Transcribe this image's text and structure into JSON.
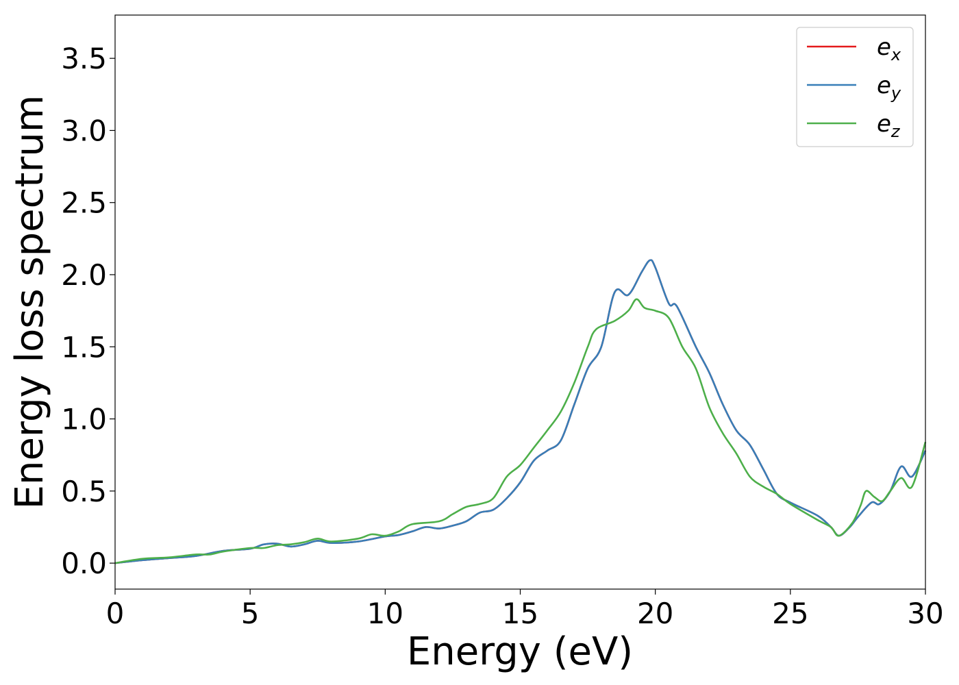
{
  "chart_data": {
    "type": "line",
    "title": "",
    "xlabel": "Energy (eV)",
    "ylabel": "Energy loss spectrum",
    "xlim": [
      0,
      30
    ],
    "ylim": [
      -0.18,
      3.8
    ],
    "xticks": [
      0,
      5,
      10,
      15,
      20,
      25,
      30
    ],
    "xtick_labels": [
      "0",
      "5",
      "10",
      "15",
      "20",
      "25",
      "30"
    ],
    "yticks": [
      0.0,
      0.5,
      1.0,
      1.5,
      2.0,
      2.5,
      3.0,
      3.5
    ],
    "ytick_labels": [
      "0.0",
      "0.5",
      "1.0",
      "1.5",
      "2.0",
      "2.5",
      "3.0",
      "3.5"
    ],
    "grid": false,
    "legend_position": "top-right",
    "series": [
      {
        "name": "e",
        "sub": "x",
        "color": "#e41a1c",
        "x": [
          0,
          1,
          2,
          3,
          4,
          5,
          5.5,
          6,
          6.5,
          7,
          7.5,
          8,
          9,
          10,
          10.5,
          11,
          11.5,
          12,
          12.5,
          13,
          13.5,
          14,
          14.5,
          15,
          15.5,
          16,
          16.5,
          17,
          17.5,
          18,
          18.5,
          19,
          19.5,
          19.8,
          20,
          20.5,
          20.8,
          21.5,
          22,
          22.5,
          23,
          23.5,
          24,
          24.5,
          25,
          26,
          26.5,
          26.8,
          27.2,
          27.5,
          28,
          28.3,
          28.7,
          29.1,
          29.5,
          30
        ],
        "y": [
          0,
          0.02,
          0.035,
          0.05,
          0.085,
          0.1,
          0.13,
          0.135,
          0.115,
          0.13,
          0.155,
          0.14,
          0.15,
          0.185,
          0.195,
          0.22,
          0.25,
          0.24,
          0.26,
          0.29,
          0.35,
          0.37,
          0.45,
          0.56,
          0.71,
          0.78,
          0.85,
          1.1,
          1.35,
          1.5,
          1.88,
          1.86,
          2.02,
          2.1,
          2.05,
          1.8,
          1.78,
          1.5,
          1.32,
          1.1,
          0.92,
          0.82,
          0.65,
          0.48,
          0.42,
          0.33,
          0.25,
          0.19,
          0.25,
          0.32,
          0.42,
          0.41,
          0.5,
          0.67,
          0.6,
          0.78
        ]
      },
      {
        "name": "e",
        "sub": "y",
        "color": "#377eb8",
        "x": [
          0,
          1,
          2,
          3,
          4,
          5,
          5.5,
          6,
          6.5,
          7,
          7.5,
          8,
          9,
          10,
          10.5,
          11,
          11.5,
          12,
          12.5,
          13,
          13.5,
          14,
          14.5,
          15,
          15.5,
          16,
          16.5,
          17,
          17.5,
          18,
          18.5,
          19,
          19.5,
          19.8,
          20,
          20.5,
          20.8,
          21.5,
          22,
          22.5,
          23,
          23.5,
          24,
          24.5,
          25,
          26,
          26.5,
          26.8,
          27.2,
          27.5,
          28,
          28.3,
          28.7,
          29.1,
          29.5,
          30
        ],
        "y": [
          0,
          0.02,
          0.035,
          0.05,
          0.085,
          0.1,
          0.13,
          0.135,
          0.115,
          0.13,
          0.155,
          0.14,
          0.15,
          0.185,
          0.195,
          0.22,
          0.25,
          0.24,
          0.26,
          0.29,
          0.35,
          0.37,
          0.45,
          0.56,
          0.71,
          0.78,
          0.85,
          1.1,
          1.35,
          1.5,
          1.88,
          1.86,
          2.02,
          2.1,
          2.05,
          1.8,
          1.78,
          1.5,
          1.32,
          1.1,
          0.92,
          0.82,
          0.65,
          0.48,
          0.42,
          0.33,
          0.25,
          0.19,
          0.25,
          0.32,
          0.42,
          0.41,
          0.5,
          0.67,
          0.6,
          0.78
        ]
      },
      {
        "name": "e",
        "sub": "z",
        "color": "#4daf4a",
        "x": [
          0,
          1,
          2,
          3,
          3.5,
          4,
          5,
          5.5,
          6,
          6.5,
          7,
          7.5,
          8,
          9,
          9.5,
          10,
          10.5,
          11,
          12,
          12.5,
          13,
          13.5,
          14,
          14.5,
          15,
          15.5,
          16,
          16.5,
          17,
          17.5,
          17.8,
          18.5,
          19,
          19.3,
          19.6,
          20,
          20.5,
          21,
          21.5,
          22,
          22.5,
          23,
          23.5,
          24,
          24.5,
          25,
          26,
          26.5,
          26.8,
          27.3,
          27.6,
          27.8,
          28.1,
          28.4,
          28.7,
          29.1,
          29.5,
          30
        ],
        "y": [
          0,
          0.03,
          0.04,
          0.06,
          0.06,
          0.08,
          0.105,
          0.105,
          0.125,
          0.13,
          0.145,
          0.17,
          0.15,
          0.17,
          0.2,
          0.19,
          0.22,
          0.27,
          0.29,
          0.34,
          0.39,
          0.41,
          0.45,
          0.6,
          0.68,
          0.8,
          0.92,
          1.05,
          1.25,
          1.5,
          1.62,
          1.68,
          1.75,
          1.83,
          1.77,
          1.75,
          1.7,
          1.5,
          1.35,
          1.08,
          0.9,
          0.76,
          0.6,
          0.53,
          0.48,
          0.41,
          0.3,
          0.25,
          0.19,
          0.28,
          0.4,
          0.5,
          0.46,
          0.43,
          0.5,
          0.59,
          0.53,
          0.84
        ]
      }
    ]
  }
}
